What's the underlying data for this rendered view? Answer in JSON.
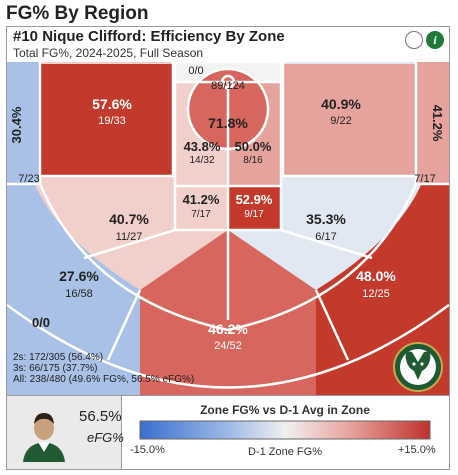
{
  "header": {
    "title": "FG% By Region"
  },
  "card": {
    "title": "#10 Nique Clifford: Efficiency By Zone",
    "subtitle": "Total FG%, 2024-2025, Full Season",
    "info_label": "i"
  },
  "summary": {
    "twos": "2s: 172/305 (56.4%)",
    "threes": "3s: 66/175 (37.7%)",
    "all": "All: 238/480 (49.6% FG%, 56.5% eFG%)"
  },
  "player": {
    "efg_value": "56.5%",
    "efg_label": "eFG%"
  },
  "legend": {
    "title": "Zone FG% vs D-1 Avg in Zone",
    "min_label": "-15.0%",
    "mid_label": "D-1 Zone FG%",
    "max_label": "+15.0%",
    "colors": [
      "#3a6fd0",
      "#9cb8e6",
      "#f0f0f0",
      "#e8a5a0",
      "#c0312b"
    ]
  },
  "colors": {
    "court_line": "#ffffff",
    "team_green": "#1f5a33",
    "deep_red": "#c33a2c",
    "mid_red": "#d7675e",
    "light_red": "#e6a29c",
    "pale_red": "#f1cfcb",
    "neutral": "#f3f3f3",
    "light_blue": "#a9c1e7",
    "pale_blue": "#e2e8f2"
  },
  "chart_data": {
    "type": "heatmap",
    "title": "#10 Nique Clifford: Efficiency By Zone",
    "zones": [
      {
        "zone": "Left Corner 3",
        "fg_pct": "30.4%",
        "made_attempts": "7/23"
      },
      {
        "zone": "Right Corner 3",
        "fg_pct": "41.2%",
        "made_attempts": "7/17"
      },
      {
        "zone": "Left Baseline Mid-Range",
        "fg_pct": "57.6%",
        "made_attempts": "19/33"
      },
      {
        "zone": "Right Baseline Mid-Range",
        "fg_pct": "40.9%",
        "made_attempts": "9/22"
      },
      {
        "zone": "Restricted Area",
        "fg_pct": "71.8%",
        "made_attempts": "89/124"
      },
      {
        "zone": "Lane Left",
        "fg_pct": "43.8%",
        "made_attempts": "14/32"
      },
      {
        "zone": "Lane Right",
        "fg_pct": "50.0%",
        "made_attempts": "8/16"
      },
      {
        "zone": "Free Throw Left",
        "fg_pct": "41.2%",
        "made_attempts": "7/17"
      },
      {
        "zone": "Free Throw Right",
        "fg_pct": "52.9%",
        "made_attempts": "9/17"
      },
      {
        "zone": "Left Elbow Mid-Range",
        "fg_pct": "40.7%",
        "made_attempts": "11/27"
      },
      {
        "zone": "Right Elbow Mid-Range",
        "fg_pct": "35.3%",
        "made_attempts": "6/17"
      },
      {
        "zone": "Left Wing 3",
        "fg_pct": "27.6%",
        "made_attempts": "16/58"
      },
      {
        "zone": "Right Wing 3",
        "fg_pct": "48.0%",
        "made_attempts": "12/25"
      },
      {
        "zone": "Top of Key 3",
        "fg_pct": "46.2%",
        "made_attempts": "24/52"
      },
      {
        "zone": "Behind Basket",
        "fg_pct": "",
        "made_attempts": "0/0"
      },
      {
        "zone": "Heave",
        "fg_pct": "",
        "made_attempts": "0/0"
      }
    ]
  }
}
